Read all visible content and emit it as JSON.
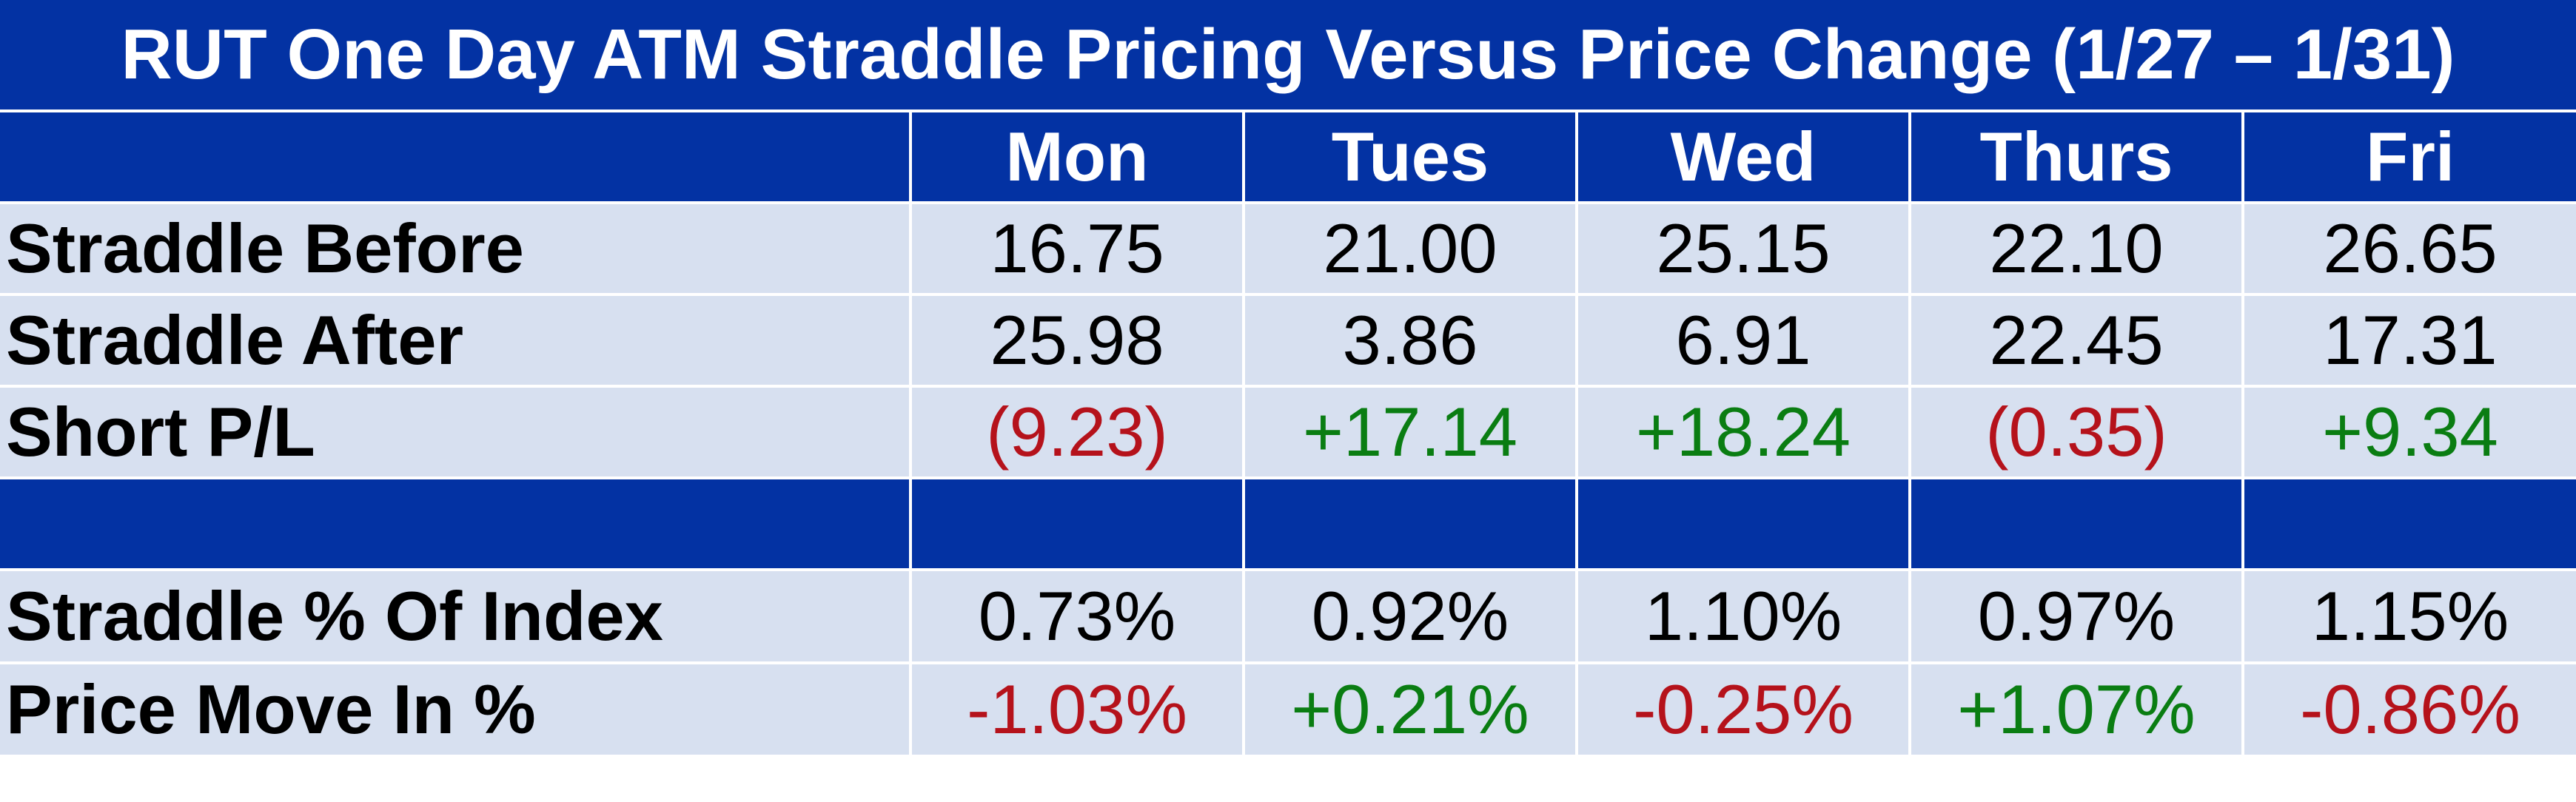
{
  "title": "RUT One Day ATM Straddle Pricing Versus Price Change (1/27 – 1/31)",
  "days": [
    "Mon",
    "Tues",
    "Wed",
    "Thurs",
    "Fri"
  ],
  "rows": [
    {
      "label": "Straddle Before",
      "values": [
        "16.75",
        "21.00",
        "25.15",
        "22.10",
        "26.65"
      ],
      "signs": [
        "",
        "",
        "",
        "",
        ""
      ]
    },
    {
      "label": "Straddle After",
      "values": [
        "25.98",
        "3.86",
        "6.91",
        "22.45",
        "17.31"
      ],
      "signs": [
        "",
        "",
        "",
        "",
        ""
      ]
    },
    {
      "label": "Short P/L",
      "values": [
        "(9.23)",
        "+17.14",
        "+18.24",
        "(0.35)",
        "+9.34"
      ],
      "signs": [
        "neg",
        "pos",
        "pos",
        "neg",
        "pos"
      ]
    },
    {
      "label": "Straddle % Of Index",
      "values": [
        "0.73%",
        "0.92%",
        "1.10%",
        "0.97%",
        "1.15%"
      ],
      "signs": [
        "",
        "",
        "",
        "",
        ""
      ]
    },
    {
      "label": "Price Move In %",
      "values": [
        "-1.03%",
        "+0.21%",
        "-0.25%",
        "+1.07%",
        "-0.86%"
      ],
      "signs": [
        "neg",
        "pos",
        "neg",
        "pos",
        "neg"
      ]
    }
  ],
  "colors": {
    "header_bg": "#0332a3",
    "row_bg": "#d7e0f0",
    "positive": "#0a7d12",
    "negative": "#b5121b"
  }
}
